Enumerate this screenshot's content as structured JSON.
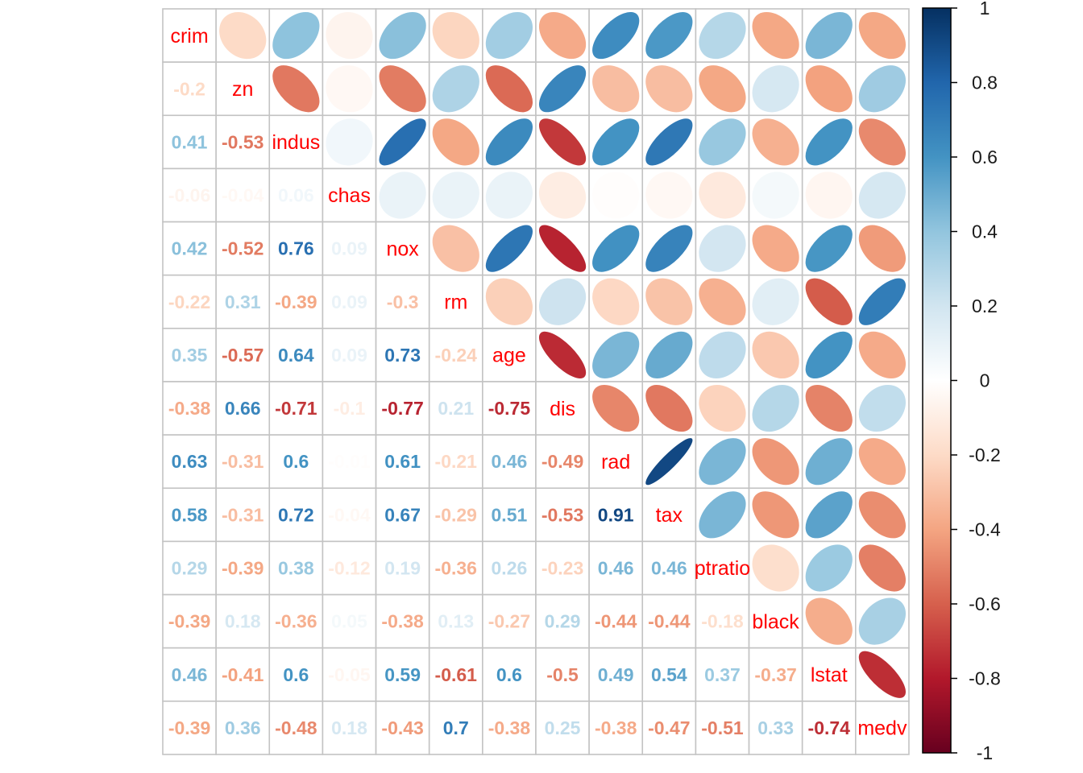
{
  "chart_data": {
    "type": "heatmap",
    "subtype": "correlation-matrix",
    "title": "",
    "xlabel": "",
    "ylabel": "",
    "layout": {
      "lower_triangle": "numbers",
      "upper_triangle": "ellipses",
      "diagonal": "variable-names",
      "grid": true,
      "legend_position": "right-colorbar"
    },
    "variables": [
      "crim",
      "zn",
      "indus",
      "chas",
      "nox",
      "rm",
      "age",
      "dis",
      "rad",
      "tax",
      "ptratio",
      "black",
      "lstat",
      "medv"
    ],
    "lower_triangle_values": [
      [
        -0.2
      ],
      [
        0.41,
        -0.53
      ],
      [
        -0.06,
        -0.04,
        0.06
      ],
      [
        0.42,
        -0.52,
        0.76,
        0.09
      ],
      [
        -0.22,
        0.31,
        -0.39,
        0.09,
        -0.3
      ],
      [
        0.35,
        -0.57,
        0.64,
        0.09,
        0.73,
        -0.24
      ],
      [
        -0.38,
        0.66,
        -0.71,
        -0.1,
        -0.77,
        0.21,
        -0.75
      ],
      [
        0.63,
        -0.31,
        0.6,
        -0.01,
        0.61,
        -0.21,
        0.46,
        -0.49
      ],
      [
        0.58,
        -0.31,
        0.72,
        -0.04,
        0.67,
        -0.29,
        0.51,
        -0.53,
        0.91
      ],
      [
        0.29,
        -0.39,
        0.38,
        -0.12,
        0.19,
        -0.36,
        0.26,
        -0.23,
        0.46,
        0.46
      ],
      [
        -0.39,
        0.18,
        -0.36,
        0.05,
        -0.38,
        0.13,
        -0.27,
        0.29,
        -0.44,
        -0.44,
        -0.18
      ],
      [
        0.46,
        -0.41,
        0.6,
        -0.05,
        0.59,
        -0.61,
        0.6,
        -0.5,
        0.49,
        0.54,
        0.37,
        -0.37
      ],
      [
        -0.39,
        0.36,
        -0.48,
        0.18,
        -0.43,
        0.7,
        -0.38,
        0.25,
        -0.38,
        -0.47,
        -0.51,
        0.33,
        -0.74
      ]
    ],
    "value_range": [
      -1,
      1
    ],
    "colorbar": {
      "position": "right",
      "tick_labels": [
        "1",
        "0.8",
        "0.6",
        "0.4",
        "0.2",
        "0",
        "-0.2",
        "-0.4",
        "-0.6",
        "-0.8",
        "-1"
      ],
      "tick_values": [
        1,
        0.8,
        0.6,
        0.4,
        0.2,
        0,
        -0.2,
        -0.4,
        -0.6,
        -0.8,
        -1
      ]
    },
    "colors": {
      "palette_rdbu_anchors_neg_to_pos": [
        "#67001F",
        "#B2182B",
        "#D6604D",
        "#F4A582",
        "#FDDBC7",
        "#FFFFFF",
        "#D1E5F0",
        "#92C5DE",
        "#4393C3",
        "#2166AC",
        "#053061"
      ],
      "diagonal_label_color": "#ff0000",
      "grid_line_color": "#c3c3c3",
      "colorbar_border_color": "#000000",
      "tick_label_color": "#1a1a1a",
      "background": "#ffffff"
    }
  }
}
